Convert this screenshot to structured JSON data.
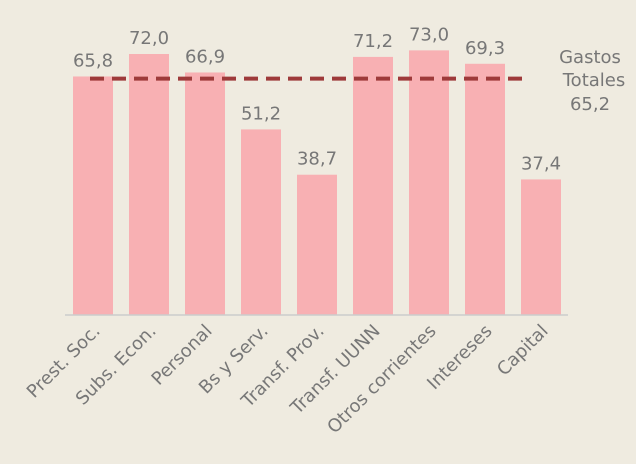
{
  "chart_data": {
    "type": "bar",
    "categories": [
      "Prest. Soc.",
      "Subs. Econ.",
      "Personal",
      "Bs y Serv.",
      "Transf. Prov.",
      "Transf. UUNN",
      "Otros corrientes",
      "Intereses",
      "Capital"
    ],
    "values": [
      65.8,
      72.0,
      66.9,
      51.2,
      38.7,
      71.2,
      73.0,
      69.3,
      37.4
    ],
    "value_labels": [
      "65,8",
      "72,0",
      "66,9",
      "51,2",
      "38,7",
      "71,2",
      "73,0",
      "69,3",
      "37,4"
    ],
    "color": "#f8b0b3",
    "ylim": [
      0,
      80
    ],
    "reference_line": {
      "name": "Gastos Totales",
      "value": 65.2,
      "label": "65,2",
      "color": "#9e3a3a"
    }
  }
}
